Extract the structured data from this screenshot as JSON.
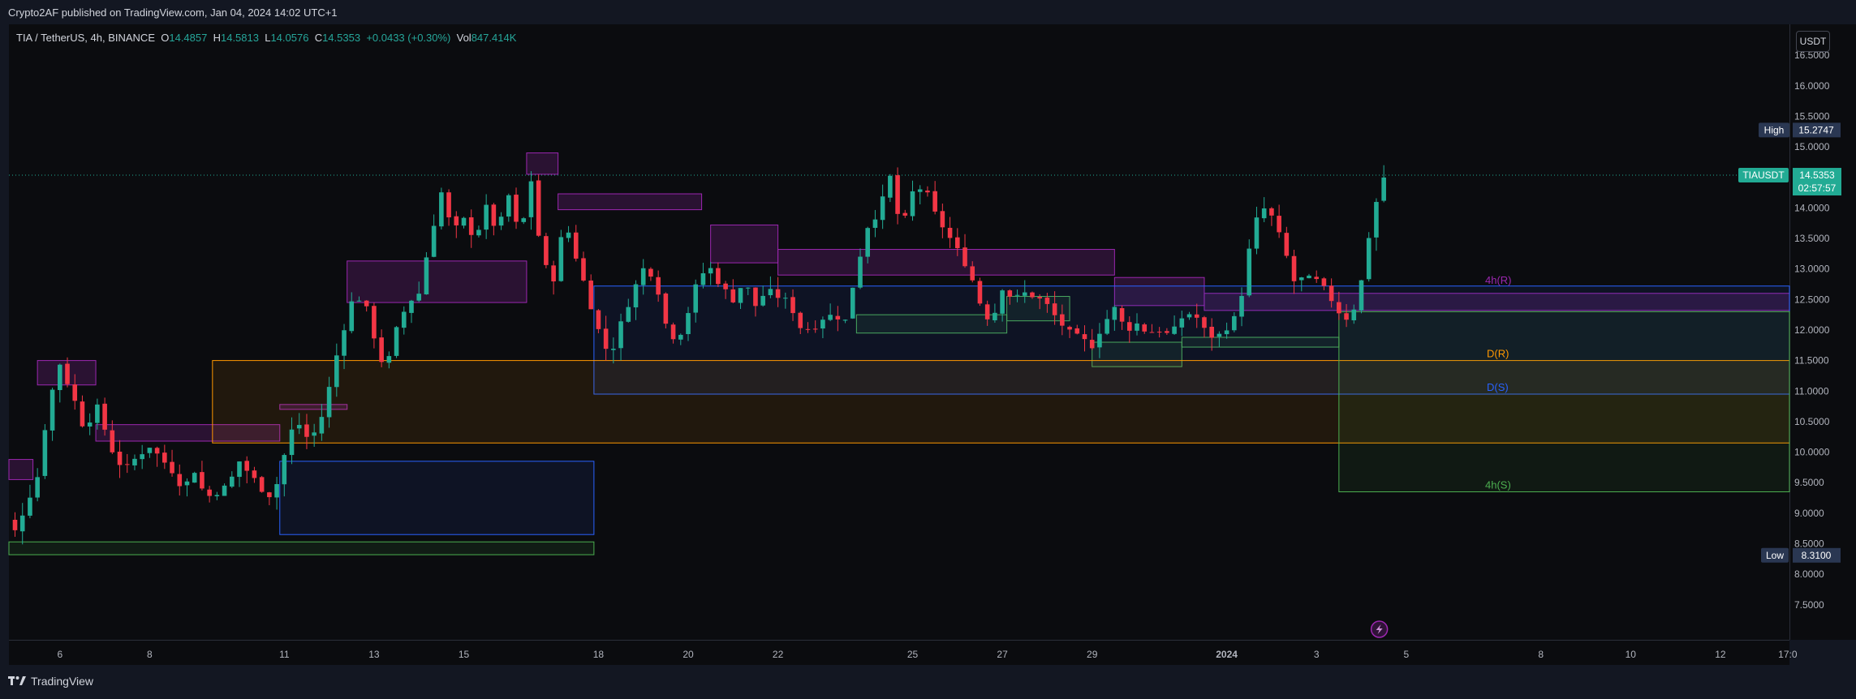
{
  "header": {
    "published": "Crypto2AF published on TradingView.com, Jan 04, 2024 14:02 UTC+1"
  },
  "legend": {
    "symbol": "TIA / TetherUS, 4h, BINANCE",
    "o_label": "O",
    "o": "14.4857",
    "h_label": "H",
    "h": "14.5813",
    "l_label": "L",
    "l": "14.0576",
    "c_label": "C",
    "c": "14.5353",
    "change": "+0.0433 (+0.30%)",
    "vol_label": "Vol",
    "vol": "847.414K"
  },
  "currency_button": "USDT",
  "price_tags": {
    "high_label": "High",
    "high_value": "15.2747",
    "low_label": "Low",
    "low_value": "8.3100",
    "symbol_label": "TIAUSDT",
    "last_value": "14.5353",
    "countdown": "02:57:57"
  },
  "footer": {
    "brand": "TradingView"
  },
  "colors": {
    "up": "#22ab94",
    "down": "#f23645",
    "background": "#0b0c0f",
    "supply_zone": "#9c27b0",
    "demand_zone": "#4caf50",
    "daily_resistance": "#ff9800",
    "daily_support": "#2962ff"
  },
  "chart_data": {
    "type": "candlestick",
    "symbol": "TIA / TetherUS",
    "interval": "4h",
    "exchange": "BINANCE",
    "y_ticks": [
      7.5,
      8.0,
      8.5,
      9.0,
      9.5,
      10.0,
      10.5,
      11.0,
      11.5,
      12.0,
      12.5,
      13.0,
      13.5,
      14.0,
      14.5,
      15.0,
      15.5,
      16.0,
      16.5
    ],
    "y_tick_labels": [
      "7.5000",
      "8.0000",
      "8.5000",
      "9.0000",
      "9.5000",
      "10.0000",
      "10.5000",
      "11.0000",
      "11.5000",
      "12.0000",
      "12.5000",
      "13.0000",
      "13.5000",
      "14.0000",
      "14.5000",
      "15.0000",
      "15.5000",
      "16.0000",
      "16.5000"
    ],
    "x_ticks": [
      {
        "label": "6",
        "d": 6
      },
      {
        "label": "8",
        "d": 8
      },
      {
        "label": "11",
        "d": 11
      },
      {
        "label": "13",
        "d": 13
      },
      {
        "label": "15",
        "d": 15
      },
      {
        "label": "18",
        "d": 18
      },
      {
        "label": "20",
        "d": 20
      },
      {
        "label": "22",
        "d": 22
      },
      {
        "label": "25",
        "d": 25
      },
      {
        "label": "27",
        "d": 27
      },
      {
        "label": "29",
        "d": 29
      },
      {
        "label": "2024",
        "d": 32,
        "bold": true
      },
      {
        "label": "3",
        "d": 34
      },
      {
        "label": "5",
        "d": 36
      },
      {
        "label": "8",
        "d": 39
      },
      {
        "label": "10",
        "d": 41
      },
      {
        "label": "12",
        "d": 43
      },
      {
        "label": "17:0",
        "d": 44.5
      }
    ],
    "x_unit": "days since 2023-12-01 (Dec 6 = 6, Jan 1 2024 = 32)",
    "anchor": [
      [
        4.75,
        8.98
      ],
      [
        5.0,
        8.7
      ],
      [
        5.5,
        9.6
      ],
      [
        5.75,
        10.8
      ],
      [
        6.0,
        11.45
      ],
      [
        6.3,
        10.9
      ],
      [
        6.6,
        10.25
      ],
      [
        6.75,
        10.9
      ],
      [
        7.25,
        9.85
      ],
      [
        7.5,
        9.75
      ],
      [
        7.75,
        9.95
      ],
      [
        8.0,
        10.1
      ],
      [
        8.5,
        9.7
      ],
      [
        8.75,
        9.4
      ],
      [
        9.0,
        9.7
      ],
      [
        9.25,
        9.25
      ],
      [
        9.75,
        9.45
      ],
      [
        10.0,
        9.85
      ],
      [
        10.5,
        9.4
      ],
      [
        10.75,
        9.25
      ],
      [
        11.0,
        9.95
      ],
      [
        11.25,
        10.55
      ],
      [
        11.5,
        10.25
      ],
      [
        11.75,
        10.35
      ],
      [
        12.0,
        11.05
      ],
      [
        12.25,
        11.85
      ],
      [
        12.5,
        12.45
      ],
      [
        12.75,
        12.55
      ],
      [
        13.0,
        11.9
      ],
      [
        13.25,
        11.3
      ],
      [
        13.5,
        12.0
      ],
      [
        13.75,
        12.45
      ],
      [
        14.0,
        12.6
      ],
      [
        14.25,
        13.5
      ],
      [
        14.5,
        14.25
      ],
      [
        14.75,
        13.6
      ],
      [
        15.0,
        13.8
      ],
      [
        15.25,
        13.5
      ],
      [
        15.5,
        14.0
      ],
      [
        15.75,
        13.6
      ],
      [
        16.0,
        14.2
      ],
      [
        16.25,
        13.5
      ],
      [
        16.5,
        14.45
      ],
      [
        16.75,
        13.1
      ],
      [
        17.0,
        12.85
      ],
      [
        17.25,
        13.8
      ],
      [
        17.5,
        13.2
      ],
      [
        17.75,
        12.6
      ],
      [
        18.0,
        12.0
      ],
      [
        18.25,
        11.55
      ],
      [
        18.5,
        12.1
      ],
      [
        18.75,
        12.6
      ],
      [
        19.0,
        13.0
      ],
      [
        19.25,
        12.9
      ],
      [
        19.5,
        12.1
      ],
      [
        19.75,
        11.8
      ],
      [
        20.0,
        12.3
      ],
      [
        20.25,
        12.9
      ],
      [
        20.5,
        13.0
      ],
      [
        20.75,
        12.7
      ],
      [
        21.0,
        12.5
      ],
      [
        21.25,
        12.8
      ],
      [
        21.5,
        12.4
      ],
      [
        21.75,
        12.65
      ],
      [
        22.0,
        12.55
      ],
      [
        22.25,
        12.45
      ],
      [
        22.5,
        12.05
      ],
      [
        22.75,
        12.0
      ],
      [
        23.0,
        12.2
      ],
      [
        23.25,
        12.25
      ],
      [
        23.5,
        12.15
      ],
      [
        23.75,
        13.0
      ],
      [
        24.0,
        13.7
      ],
      [
        24.25,
        13.95
      ],
      [
        24.5,
        14.5
      ],
      [
        24.75,
        13.6
      ],
      [
        25.0,
        14.25
      ],
      [
        25.25,
        14.35
      ],
      [
        25.5,
        13.9
      ],
      [
        25.75,
        13.6
      ],
      [
        26.0,
        13.3
      ],
      [
        26.25,
        13.0
      ],
      [
        26.5,
        12.45
      ],
      [
        26.75,
        12.1
      ],
      [
        27.0,
        12.7
      ],
      [
        27.25,
        12.5
      ],
      [
        27.5,
        12.6
      ],
      [
        27.75,
        12.55
      ],
      [
        28.0,
        12.4
      ],
      [
        28.25,
        12.15
      ],
      [
        28.5,
        11.95
      ],
      [
        28.75,
        11.85
      ],
      [
        29.0,
        11.75
      ],
      [
        29.25,
        12.1
      ],
      [
        29.5,
        12.35
      ],
      [
        29.75,
        12.0
      ],
      [
        30.0,
        12.1
      ],
      [
        30.25,
        11.95
      ],
      [
        30.5,
        12.0
      ],
      [
        30.75,
        11.9
      ],
      [
        31.0,
        12.2
      ],
      [
        31.25,
        12.3
      ],
      [
        31.5,
        12.0
      ],
      [
        31.75,
        11.85
      ],
      [
        32.0,
        12.05
      ],
      [
        32.25,
        12.25
      ],
      [
        32.5,
        13.3
      ],
      [
        32.75,
        14.05
      ],
      [
        33.0,
        13.85
      ],
      [
        33.25,
        13.4
      ],
      [
        33.5,
        12.8
      ],
      [
        33.75,
        12.85
      ],
      [
        34.0,
        12.8
      ],
      [
        34.25,
        12.6
      ],
      [
        34.5,
        12.3
      ],
      [
        34.75,
        12.15
      ],
      [
        35.0,
        12.8
      ],
      [
        35.25,
        13.9
      ],
      [
        35.5,
        14.5
      ],
      [
        35.62,
        14.5353
      ]
    ],
    "zones": [
      {
        "type": "supply",
        "x1": 4.0,
        "x2": 5.4,
        "y1": 9.55,
        "y2": 9.88
      },
      {
        "type": "supply",
        "x1": 5.5,
        "x2": 6.8,
        "y1": 11.1,
        "y2": 11.5
      },
      {
        "type": "supply",
        "x1": 6.8,
        "x2": 10.9,
        "y1": 10.18,
        "y2": 10.45
      },
      {
        "type": "supply",
        "x1": 10.9,
        "x2": 12.4,
        "y1": 10.7,
        "y2": 10.78
      },
      {
        "type": "supply",
        "x1": 12.4,
        "x2": 16.4,
        "y1": 12.45,
        "y2": 13.13
      },
      {
        "type": "supply",
        "x1": 16.4,
        "x2": 17.1,
        "y1": 14.55,
        "y2": 14.9
      },
      {
        "type": "supply",
        "x1": 17.1,
        "x2": 20.3,
        "y1": 13.97,
        "y2": 14.23
      },
      {
        "type": "supply",
        "x1": 20.5,
        "x2": 22.0,
        "y1": 13.1,
        "y2": 13.72
      },
      {
        "type": "supply",
        "x1": 22.0,
        "x2": 29.5,
        "y1": 12.9,
        "y2": 13.32
      },
      {
        "type": "supply",
        "x1": 29.5,
        "x2": 31.5,
        "y1": 12.4,
        "y2": 12.86
      },
      {
        "type": "supply",
        "x1": 31.5,
        "x2": 44.6,
        "y1": 12.32,
        "y2": 12.6
      },
      {
        "type": "demand",
        "x1": 4.6,
        "x2": 17.9,
        "y1": 8.32,
        "y2": 8.53
      },
      {
        "type": "demand",
        "x1": 23.75,
        "x2": 27.1,
        "y1": 11.95,
        "y2": 12.25
      },
      {
        "type": "demand",
        "x1": 27.1,
        "x2": 28.5,
        "y1": 12.15,
        "y2": 12.55
      },
      {
        "type": "demand",
        "x1": 29.0,
        "x2": 31.0,
        "y1": 11.4,
        "y2": 11.8
      },
      {
        "type": "demand",
        "x1": 31.0,
        "x2": 34.5,
        "y1": 11.72,
        "y2": 11.88
      },
      {
        "type": "daily_support",
        "x1": 10.9,
        "x2": 17.9,
        "y1": 8.65,
        "y2": 9.85
      },
      {
        "type": "daily_support",
        "x1": 17.9,
        "x2": 44.6,
        "y1": 10.95,
        "y2": 12.72
      },
      {
        "type": "daily_resistance",
        "x1": 9.4,
        "x2": 44.6,
        "y1": 10.15,
        "y2": 11.5
      },
      {
        "type": "4h_support",
        "x1": 34.5,
        "x2": 44.6,
        "y1": 9.35,
        "y2": 12.3
      }
    ],
    "levels": [
      {
        "label": "4h(R)",
        "value": 12.7,
        "color": "#9c27b0"
      },
      {
        "label": "D(R)",
        "value": 11.5,
        "color": "#ff9800"
      },
      {
        "label": "D(S)",
        "value": 10.95,
        "color": "#2962ff"
      },
      {
        "label": "4h(S)",
        "value": 9.35,
        "color": "#4caf50"
      }
    ],
    "last_price": 14.5353,
    "high": 15.2747,
    "low": 8.31
  }
}
